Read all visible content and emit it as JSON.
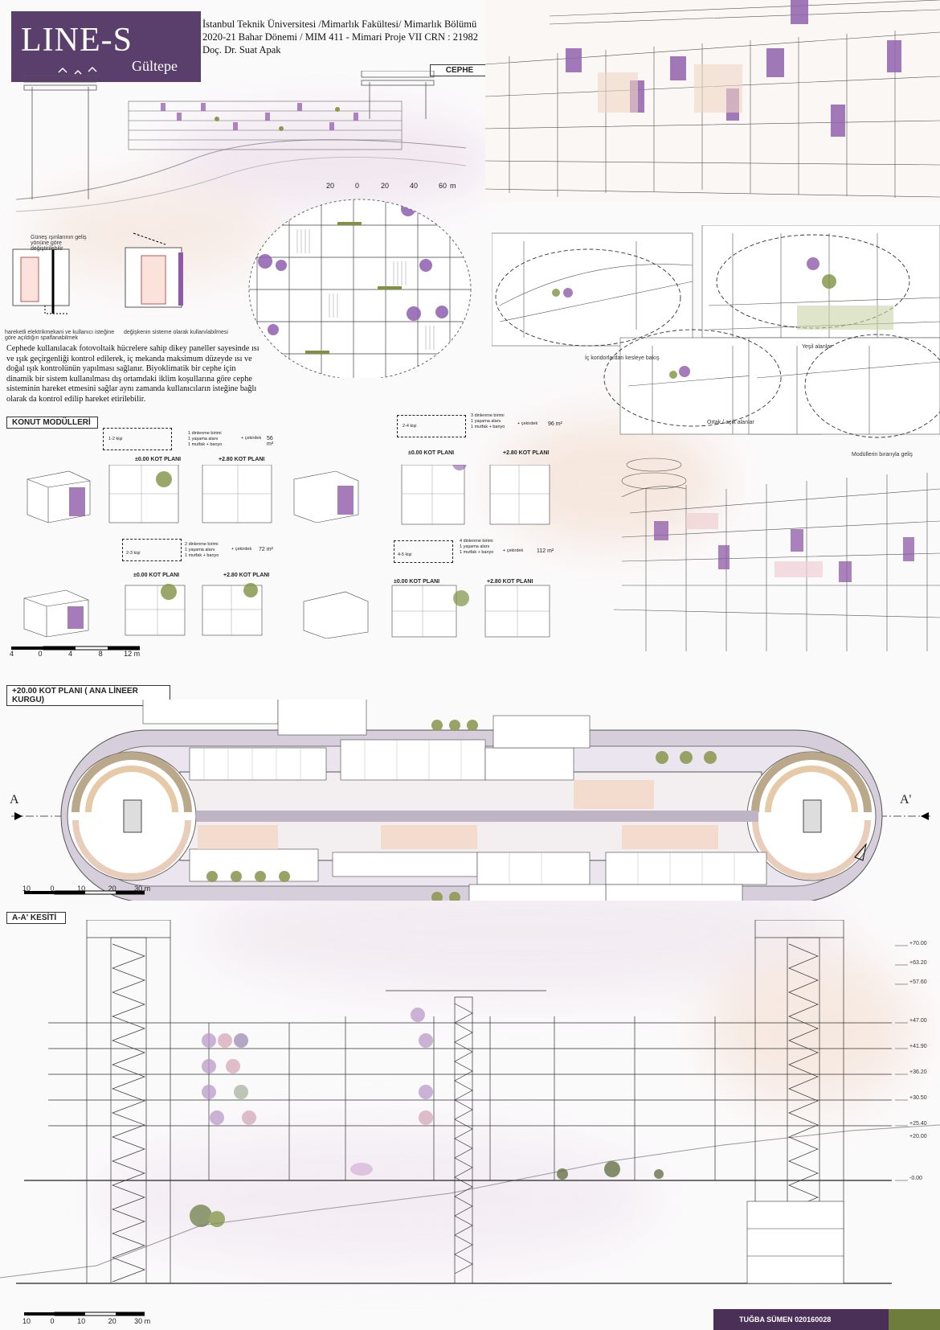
{
  "header": {
    "title": "LINE-S",
    "subtitle": "Gültepe",
    "info_line1": "İstanbul Teknik Üniversitesi /Mimarlık Fakültesi/ Mimarlık Bölümü",
    "info_line2": "2020-21 Bahar Dönemi / MIM 411 - Mimari Proje VII CRN : 21982",
    "info_line3": "Doç. Dr. Suat Apak"
  },
  "sections": {
    "cephe": "CEPHE",
    "konut": "KONUT MODÜLLERİ",
    "plan": "+20.00 KOT PLANI ( ANA LİNEER KURGU)",
    "kesit": "A-A' KESİTİ"
  },
  "facade_text": "Cephede kullanılacak fotovoltaik hücrelere sahip dikey paneller sayesinde ısı ve ışık geçirgenliği kontrol edilerek, iç mekanda maksimum düzeyde ısı ve doğal ışık kontrolünün yapılması sağlanır. Biyoklimatik bir cephe için dinamik bir sistem kullanılması dış ortamdaki iklim koşullarına göre cephe sisteminin hareket etmesini sağlar aynı zamanda kullanıcıların isteğine bağlı olarak da kontrol edilip hareket etirilebilir.",
  "facade_notes": {
    "n1": "Güneş ışınlarının geliş yönüne göre değiştirilebilir",
    "n2": "hareketli elektrikmekani ve kullanıcı isteğine göre açıldığın spaflanabilmek",
    "n3": "değişkenin sisteme olarak kullanılabilmesi"
  },
  "vignettes": {
    "v1": "İç koridorlardan kesleye bakış",
    "v2": "Yeşil alanlar",
    "v3": "Ortak / açık alanlar",
    "v4": "Modüllerin bırarıyla geliş"
  },
  "modules": [
    {
      "people": "1-2 kişi",
      "desc": [
        "1 dinlenme birimi",
        "1 yaşama alanı",
        "1 mutfak + banyo"
      ],
      "extra": "+ çekirdek",
      "area": "56 m²",
      "plan1": "±0.00 KOT PLANI",
      "plan2": "+2.80 KOT PLANI"
    },
    {
      "people": "2-4 kişi",
      "desc": [
        "3 dinlenme birimi",
        "1 yaşama alanı",
        "1 mutfak + banyo"
      ],
      "extra": "+ çekirdek",
      "area": "96 m²",
      "plan1": "±0.00 KOT PLANI",
      "plan2": "+2.80 KOT PLANI"
    },
    {
      "people": "2-3 kişi",
      "desc": [
        "2 dinlenme birimi",
        "1 yaşama alanı",
        "1 mutfak + banyo"
      ],
      "extra": "+ çekirdek",
      "area": "72 m²",
      "plan1": "±0.00 KOT PLANI",
      "plan2": "+2.80 KOT PLANI"
    },
    {
      "people": "4-5 kişi",
      "desc": [
        "4 dinlenme birimi",
        "1 yaşama alanı",
        "1 mutfak + banyo"
      ],
      "extra": "+ çekirdek",
      "area": "112 m²",
      "plan1": "±0.00 KOT PLANI",
      "plan2": "+2.80 KOT PLANI"
    }
  ],
  "scales": {
    "facade": [
      "20",
      "0",
      "20",
      "40",
      "60",
      "m"
    ],
    "modules": [
      "4",
      "0",
      "4",
      "8",
      "12",
      "m"
    ],
    "plan": [
      "10",
      "0",
      "10",
      "20",
      "30",
      "m"
    ],
    "section": [
      "10",
      "0",
      "10",
      "20",
      "30",
      "m"
    ]
  },
  "axis_labels": {
    "left": "A",
    "right": "A'"
  },
  "levels": [
    "+70.00",
    "+63.20",
    "+57.60",
    "+47.00",
    "+41.90",
    "+36.20",
    "+30.50",
    "+25.40",
    "+20.00",
    "-0.00"
  ],
  "footer": {
    "author": "TUĞBA SÜMEN 020160028"
  },
  "colors": {
    "accent": "#5a3e6b",
    "purple": "#8e5aa8",
    "green": "#6f7d3c",
    "salmon": "#f2d6c6"
  }
}
